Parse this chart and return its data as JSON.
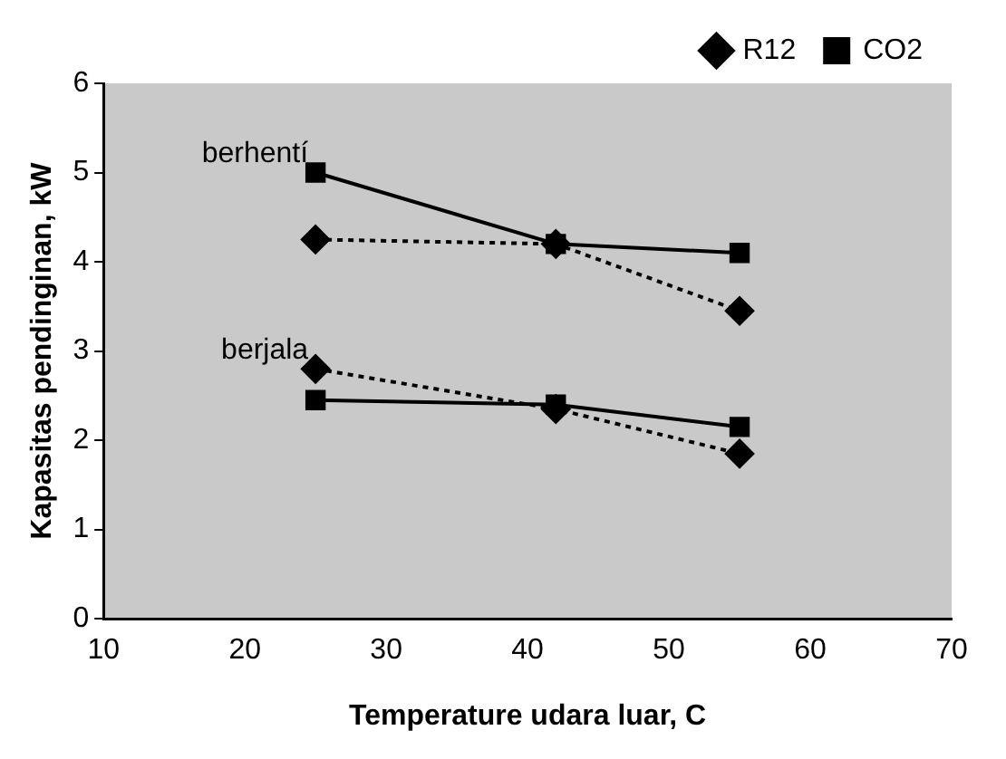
{
  "chart_data": {
    "type": "line",
    "xlabel": "Temperature udara luar, C",
    "ylabel": "Kapasitas pendinginan, kW",
    "xlim": [
      10,
      70
    ],
    "xticks": [
      10,
      20,
      30,
      40,
      50,
      60,
      70
    ],
    "ylim": [
      0,
      6
    ],
    "yticks": [
      0,
      1,
      2,
      3,
      4,
      5,
      6
    ],
    "grid": false,
    "legend": "top right",
    "series": [
      {
        "name": "CO2",
        "color": "#000000",
        "marker": "square",
        "line_style": "solid",
        "x": [
          25,
          42,
          55
        ],
        "values": [
          5.0,
          4.2,
          4.1
        ]
      },
      {
        "name": "R12",
        "color": "#000000",
        "marker": "diamond",
        "line_style": "dotted",
        "x": [
          25,
          42,
          55
        ],
        "values": [
          4.25,
          4.2,
          3.45
        ]
      },
      {
        "color": "#000000",
        "marker": "square",
        "line_style": "solid",
        "x": [
          25,
          42,
          55
        ],
        "values": [
          2.45,
          2.4,
          2.15
        ]
      },
      {
        "color": "#000000",
        "marker": "diamond",
        "line_style": "dotted",
        "x": [
          25,
          42,
          55
        ],
        "values": [
          2.8,
          2.35,
          1.85
        ]
      }
    ],
    "annotations": [
      {
        "text": "berhentí",
        "x": 25,
        "y": 5.0
      },
      {
        "text": "berjala",
        "x": 25,
        "y": 2.8
      }
    ]
  }
}
